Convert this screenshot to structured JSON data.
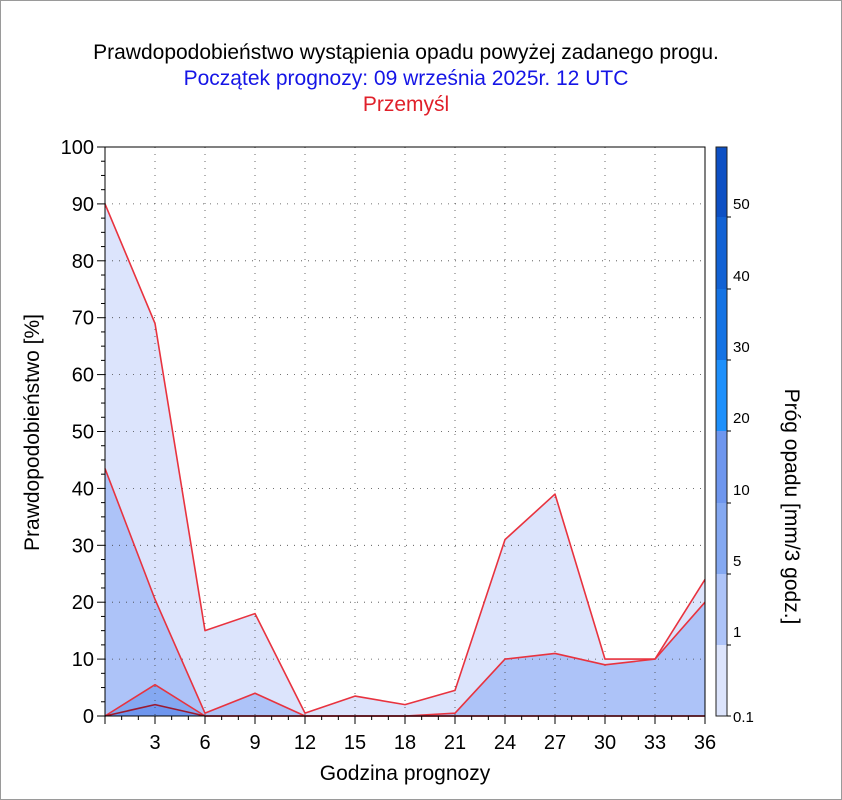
{
  "title": "Prawdopodobieństwo wystąpienia opadu powyżej zadanego progu.",
  "subtitle": "Początek prognozy: 09 września 2025r. 12 UTC",
  "location": "Przemyśl",
  "chart_data": {
    "type": "area",
    "xlabel": "Godzina prognozy",
    "ylabel": "Prawdopodobieństwo [%]",
    "xlim": [
      0,
      36
    ],
    "ylim": [
      0,
      100
    ],
    "x_ticks": [
      "3",
      "6",
      "9",
      "12",
      "15",
      "18",
      "21",
      "24",
      "27",
      "30",
      "33",
      "36"
    ],
    "y_ticks": [
      "0",
      "10",
      "20",
      "30",
      "40",
      "50",
      "60",
      "70",
      "80",
      "90",
      "100"
    ],
    "grid": true,
    "x": [
      0,
      3,
      6,
      9,
      12,
      15,
      18,
      21,
      24,
      27,
      30,
      33,
      36
    ],
    "series": [
      {
        "name": "0.1",
        "color": "#dce4fc",
        "values": [
          90,
          69,
          15,
          18,
          0.5,
          3.5,
          2,
          4.5,
          31,
          39,
          10,
          10,
          24
        ]
      },
      {
        "name": "1",
        "color": "#adc3f8",
        "values": [
          43.5,
          20.5,
          0.5,
          4,
          0,
          0,
          0,
          0.5,
          10,
          11,
          9,
          10,
          20
        ]
      },
      {
        "name": "5",
        "color": "#84a8f1",
        "values": [
          0,
          5.5,
          0,
          0,
          0,
          0,
          0,
          0,
          0,
          0,
          0,
          0,
          0
        ]
      },
      {
        "name": "10",
        "color": "#6e96ee",
        "values": [
          0,
          2,
          0,
          0,
          0,
          0,
          0,
          0,
          0,
          0,
          0,
          0,
          0
        ]
      }
    ],
    "line_color": "#e8333f",
    "colorbar": {
      "label": "Próg opadu [mm/3 godz.]",
      "labels": [
        "0.1",
        "1",
        "5",
        "10",
        "20",
        "30",
        "40",
        "50"
      ],
      "colors": [
        "#dce4fc",
        "#adc3f8",
        "#84a8f1",
        "#6e96ee",
        "#1e90fb",
        "#1573e4",
        "#1262d4",
        "#0d50c4",
        "#0840aa"
      ]
    }
  }
}
